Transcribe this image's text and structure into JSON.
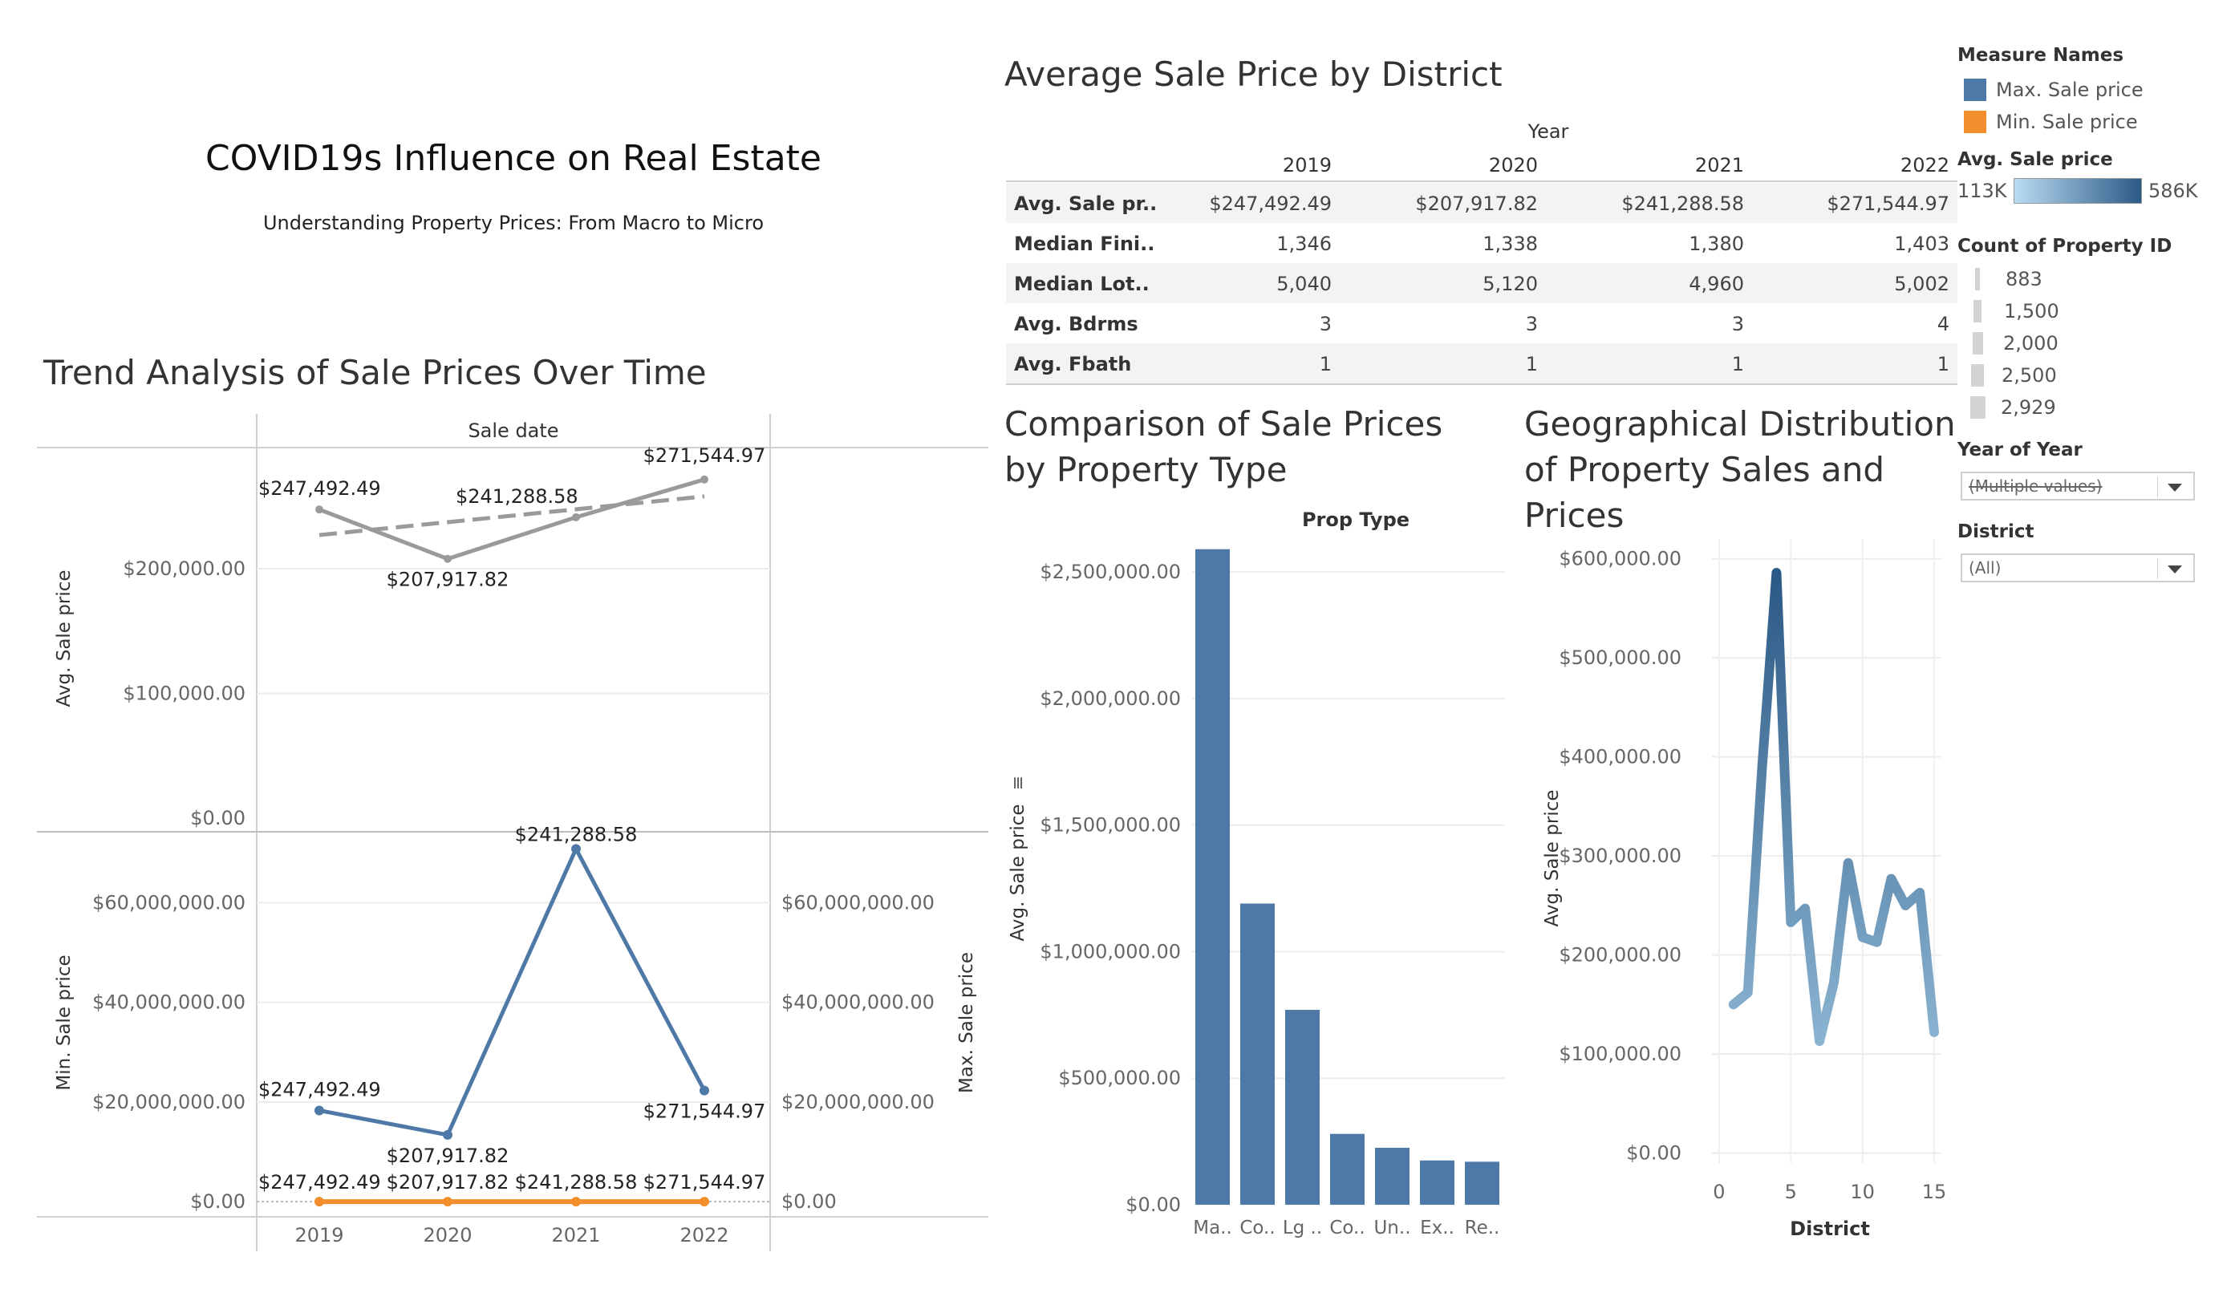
{
  "dashboard": {
    "title": "COVID19s Influence on Real Estate",
    "subtitle": "Understanding Property Prices: From Macro to Micro"
  },
  "trend": {
    "title": "Trend Analysis of Sale Prices Over Time",
    "column_header": "Sale date",
    "years": [
      "2019",
      "2020",
      "2021",
      "2022"
    ],
    "top": {
      "ylabel": "Avg. Sale price",
      "ticks": [
        "$200,000.00",
        "$100,000.00",
        "$0.00"
      ],
      "tick_values": [
        200000,
        100000,
        0
      ],
      "ylim": [
        0,
        292000
      ],
      "values": [
        247492.49,
        207917.82,
        241288.58,
        271544.97
      ],
      "labels": [
        "$247,492.49",
        "$207,917.82",
        "$241,288.58",
        "$271,544.97"
      ],
      "trend_start": 227000,
      "trend_end": 258000,
      "color": "#9a9a9a"
    },
    "bottom": {
      "ylabel_left": "Min. Sale price",
      "ylabel_right": "Max. Sale price",
      "ticks": [
        "$60,000,000.00",
        "$40,000,000.00",
        "$20,000,000.00",
        "$0.00"
      ],
      "tick_values": [
        60000000,
        40000000,
        20000000,
        0
      ],
      "ylim": [
        -300000,
        71500000
      ],
      "max_values": [
        18300000,
        13400000,
        70800000,
        22300000
      ],
      "max_labels": [
        "$247,492.49",
        "$207,917.82",
        "$241,288.58",
        "$271,544.97"
      ],
      "min_values": [
        0,
        0,
        0,
        0
      ],
      "min_labels": [
        "$247,492.49",
        "$207,917.82",
        "$241,288.58",
        "$271,544.97"
      ],
      "max_color": "#4e79a7",
      "min_color": "#f28e2b"
    }
  },
  "district_table": {
    "title": "Average Sale Price by District",
    "column_group": "Year",
    "columns": [
      "2019",
      "2020",
      "2021",
      "2022"
    ],
    "rows": [
      {
        "label": "Avg. Sale pr..",
        "values": [
          "$247,492.49",
          "$207,917.82",
          "$241,288.58",
          "$271,544.97"
        ]
      },
      {
        "label": "Median Fini..",
        "values": [
          "1,346",
          "1,338",
          "1,380",
          "1,403"
        ]
      },
      {
        "label": "Median Lot..",
        "values": [
          "5,040",
          "5,120",
          "4,960",
          "5,002"
        ]
      },
      {
        "label": "Avg. Bdrms",
        "values": [
          "3",
          "3",
          "3",
          "4"
        ]
      },
      {
        "label": "Avg. Fbath",
        "values": [
          "1",
          "1",
          "1",
          "1"
        ]
      }
    ]
  },
  "chart_data": [
    {
      "type": "bar",
      "title": "Comparison of Sale Prices by Property Type",
      "column_header": "Prop Type",
      "ylabel": "Avg. Sale price",
      "categories": [
        "Ma..",
        "Co..",
        "Lg ..",
        "Co..",
        "Un..",
        "Ex..",
        "Re.."
      ],
      "values": [
        2590000,
        1190000,
        770000,
        280000,
        225000,
        175000,
        170000
      ],
      "ylim": [
        0,
        2700000
      ],
      "ticks": [
        "$2,500,000.00",
        "$2,000,000.00",
        "$1,500,000.00",
        "$1,000,000.00",
        "$500,000.00",
        "$0.00"
      ],
      "tick_values": [
        2500000,
        2000000,
        1500000,
        1000000,
        500000,
        0
      ],
      "color": "#4e79a7"
    },
    {
      "type": "line",
      "title": "Geographical Distribution of Property Sales and Prices",
      "xlabel": "District",
      "ylabel": "Avg. Sale price",
      "x": [
        1,
        2,
        3,
        4,
        5,
        6,
        7,
        8,
        9,
        10,
        11,
        12,
        13,
        14,
        15
      ],
      "values": [
        150000,
        162000,
        390000,
        586000,
        233000,
        247000,
        113000,
        172000,
        293000,
        218000,
        213000,
        277000,
        250000,
        263000,
        122000
      ],
      "xlim": [
        -0.5,
        15.5
      ],
      "ylim": [
        -10000,
        620000
      ],
      "xticks": [
        "0",
        "5",
        "10",
        "15"
      ],
      "xtick_values": [
        0,
        5,
        10,
        15
      ],
      "ticks": [
        "$600,000.00",
        "$500,000.00",
        "$400,000.00",
        "$300,000.00",
        "$200,000.00",
        "$100,000.00",
        "$0.00"
      ],
      "tick_values": [
        600000,
        500000,
        400000,
        300000,
        200000,
        100000,
        0
      ],
      "color_range": [
        "#a8cfe8",
        "#2c5a86"
      ]
    }
  ],
  "legends": {
    "measure_names": {
      "title": "Measure Names",
      "items": [
        {
          "label": "Max. Sale price",
          "color": "#4e79a7"
        },
        {
          "label": "Min. Sale price",
          "color": "#f28e2b"
        }
      ]
    },
    "avg_sale_price": {
      "title": "Avg. Sale price",
      "min_label": "113K",
      "max_label": "586K",
      "color_start": "#b9dcf2",
      "color_end": "#2c5a86"
    },
    "count_property": {
      "title": "Count of Property ID",
      "items": [
        "883",
        "1,500",
        "2,000",
        "2,500",
        "2,929"
      ]
    },
    "year_filter": {
      "title": "Year of Year",
      "value": "(Multiple values)"
    },
    "district_filter": {
      "title": "District",
      "value": "(All)"
    }
  }
}
